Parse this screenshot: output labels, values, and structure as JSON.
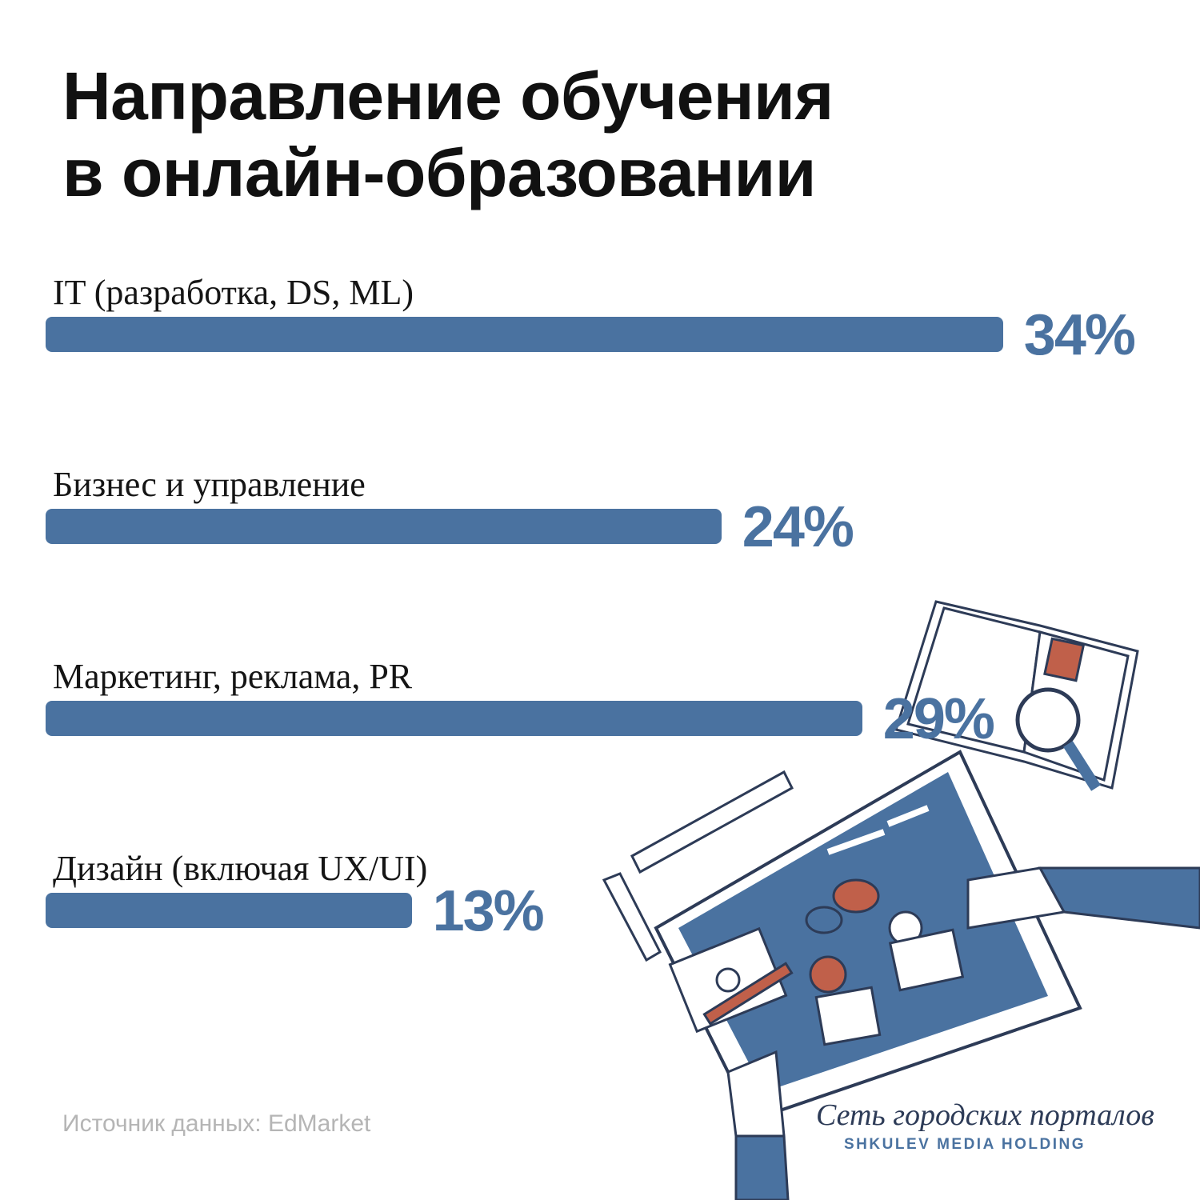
{
  "chart_data": {
    "type": "bar",
    "orientation": "horizontal",
    "title": "Направление обучения\nв онлайн-образовании",
    "categories": [
      "IT (разработка, DS, ML)",
      "Бизнес и управление",
      "Маркетинг, реклама, PR",
      "Дизайн (включая UX/UI)"
    ],
    "values": [
      34,
      24,
      29,
      13
    ],
    "value_labels": [
      "34%",
      "24%",
      "29%",
      "13%"
    ],
    "color": "#4a72a0",
    "source": "Источник данных: EdMarket",
    "brand": [
      "Сеть городских порталов",
      "SHKULEV MEDIA HOLDING"
    ]
  }
}
